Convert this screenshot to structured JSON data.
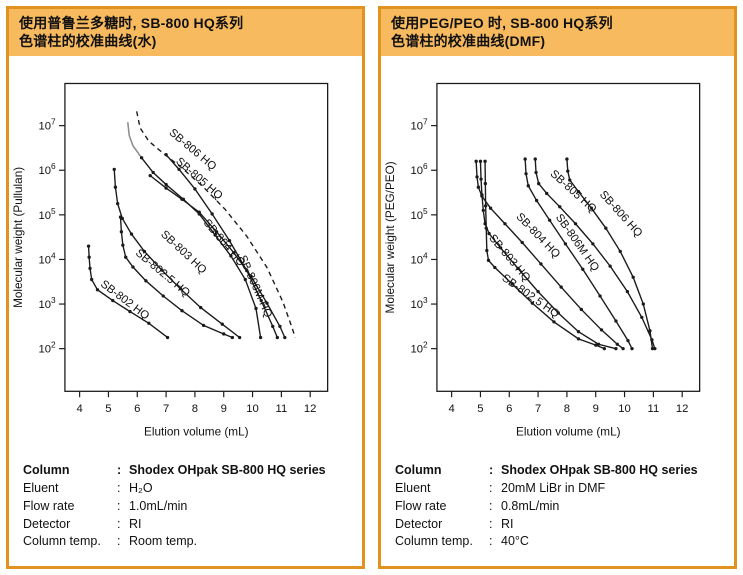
{
  "accent_colors": {
    "panel_border": "#e2921f",
    "header_bg": "#f8ba5e",
    "curve_color": "#1a1a1a",
    "grey_cap_color": "#8f8f8f"
  },
  "panels": [
    {
      "header_lines": [
        "使用普鲁兰多糖时, SB-800 HQ系列",
        "色谱柱的校准曲线(水)"
      ],
      "conditions": [
        {
          "label": "Column",
          "value": "Shodex OHpak SB-800 HQ series",
          "bold": true
        },
        {
          "label": "Eluent",
          "value": "H₂O",
          "bold": false
        },
        {
          "label": "Flow rate",
          "value": "1.0mL/min",
          "bold": false
        },
        {
          "label": "Detector",
          "value": "RI",
          "bold": false
        },
        {
          "label": "Column temp.",
          "value": "Room temp.",
          "bold": false
        }
      ]
    },
    {
      "header_lines": [
        "使用PEG/PEO 时, SB-800 HQ系列",
        "色谱柱的校准曲线(DMF)"
      ],
      "conditions": [
        {
          "label": "Column",
          "value": "Shodex OHpak SB-800 HQ series",
          "bold": true
        },
        {
          "label": "Eluent",
          "value": "20mM LiBr in DMF",
          "bold": false
        },
        {
          "label": "Flow rate",
          "value": "0.8mL/min",
          "bold": false
        },
        {
          "label": "Detector",
          "value": "RI",
          "bold": false
        },
        {
          "label": "Column temp.",
          "value": "40°C",
          "bold": false
        }
      ]
    }
  ],
  "chart_data": [
    {
      "type": "line",
      "title": "Calibration curves of SB-800 HQ series with Pullulan (water)",
      "xlabel": "Elution volume (mL)",
      "ylabel": "Molecular weight (Pullulan)",
      "x_ticks": [
        4,
        5,
        6,
        7,
        8,
        9,
        10,
        11,
        12
      ],
      "y_ticks_exp": [
        2,
        3,
        4,
        5,
        6,
        7
      ],
      "xlim": [
        3.5,
        12.6
      ],
      "ylim_exp": [
        1.05,
        7.95
      ],
      "y_scale": "log",
      "grid": false,
      "legend": "labels-along-curves",
      "series": [
        {
          "name": "SB-802 HQ",
          "dashed": false,
          "markers": true,
          "points": [
            [
              4.31,
              4.3
            ],
            [
              4.33,
              4.05
            ],
            [
              4.36,
              3.8
            ],
            [
              4.42,
              3.55
            ],
            [
              4.62,
              3.32
            ],
            [
              5.15,
              3.08
            ],
            [
              5.75,
              2.83
            ],
            [
              6.4,
              2.57
            ],
            [
              7.05,
              2.25
            ]
          ],
          "label": {
            "x": 4.7,
            "y": 3.42,
            "angle": 37
          }
        },
        {
          "name": "SB-802.5 HQ",
          "dashed": false,
          "markers": true,
          "points": [
            [
              5.42,
              4.95
            ],
            [
              5.45,
              4.62
            ],
            [
              5.5,
              4.32
            ],
            [
              5.6,
              4.05
            ],
            [
              5.85,
              3.83
            ],
            [
              6.3,
              3.52
            ],
            [
              6.9,
              3.18
            ],
            [
              7.55,
              2.85
            ],
            [
              8.3,
              2.52
            ],
            [
              9.0,
              2.33
            ],
            [
              9.3,
              2.25
            ]
          ],
          "label": {
            "x": 5.92,
            "y": 4.12,
            "angle": 40
          }
        },
        {
          "name": "SB-803 HQ",
          "dashed": false,
          "markers": true,
          "points": [
            [
              5.2,
              6.02
            ],
            [
              5.24,
              5.62
            ],
            [
              5.32,
              5.25
            ],
            [
              5.48,
              4.92
            ],
            [
              5.8,
              4.57
            ],
            [
              6.25,
              4.18
            ],
            [
              6.85,
              3.76
            ],
            [
              7.5,
              3.34
            ],
            [
              8.2,
              2.92
            ],
            [
              8.95,
              2.55
            ],
            [
              9.55,
              2.25
            ]
          ],
          "label": {
            "x": 6.8,
            "y": 4.55,
            "angle": 43
          }
        },
        {
          "name": "SB-804 HQ",
          "dashed": false,
          "markers": true,
          "grey_top_above": 6.45,
          "points": [
            [
              5.67,
              7.08
            ],
            [
              5.72,
              6.78
            ],
            [
              5.85,
              6.55
            ],
            [
              6.15,
              6.28
            ],
            [
              6.55,
              5.95
            ],
            [
              7.0,
              5.68
            ],
            [
              7.6,
              5.35
            ],
            [
              8.15,
              5.02
            ],
            [
              8.7,
              4.55
            ],
            [
              9.25,
              4.08
            ],
            [
              9.75,
              3.55
            ],
            [
              10.12,
              2.9
            ],
            [
              10.28,
              2.25
            ]
          ],
          "label": {
            "x": 8.28,
            "y": 4.82,
            "angle": 50
          }
        },
        {
          "name": "SB-805 HQ",
          "dashed": false,
          "markers": true,
          "points": [
            [
              6.45,
              5.88
            ],
            [
              7.0,
              5.6
            ],
            [
              7.55,
              5.35
            ],
            [
              8.15,
              5.06
            ],
            [
              8.75,
              4.62
            ],
            [
              9.35,
              4.15
            ],
            [
              9.95,
              3.62
            ],
            [
              10.5,
              3.02
            ],
            [
              10.95,
              2.5
            ],
            [
              11.12,
              2.25
            ]
          ],
          "label": {
            "x": 7.32,
            "y": 6.18,
            "angle": 41
          }
        },
        {
          "name": "SB-806 HQ",
          "dashed": true,
          "markers": false,
          "points": [
            [
              5.98,
              7.32
            ],
            [
              6.1,
              6.95
            ],
            [
              6.4,
              6.65
            ],
            [
              6.9,
              6.38
            ],
            [
              7.55,
              6.05
            ],
            [
              8.3,
              5.62
            ],
            [
              9.05,
              5.12
            ],
            [
              9.8,
              4.52
            ],
            [
              10.5,
              3.82
            ],
            [
              11.05,
              3.05
            ],
            [
              11.38,
              2.45
            ],
            [
              11.48,
              2.25
            ]
          ],
          "label": {
            "x": 7.08,
            "y": 6.82,
            "angle": 40
          }
        },
        {
          "name": "SB-806M HQ",
          "dashed": false,
          "markers": true,
          "points": [
            [
              7.0,
              6.35
            ],
            [
              7.45,
              6.02
            ],
            [
              8.0,
              5.58
            ],
            [
              8.6,
              5.02
            ],
            [
              9.2,
              4.42
            ],
            [
              9.8,
              3.75
            ],
            [
              10.3,
              3.08
            ],
            [
              10.7,
              2.5
            ],
            [
              10.86,
              2.25
            ]
          ],
          "label": {
            "x": 9.52,
            "y": 4.05,
            "angle": 66
          }
        }
      ]
    },
    {
      "type": "line",
      "title": "Calibration curves of SB-800 HQ series with PEG/PEO (DMF)",
      "xlabel": "Elution volume (mL)",
      "ylabel": "Molecular weight (PEG/PEO)",
      "x_ticks": [
        4,
        5,
        6,
        7,
        8,
        9,
        10,
        11,
        12
      ],
      "y_ticks_exp": [
        2,
        3,
        4,
        5,
        6,
        7
      ],
      "xlim": [
        3.5,
        12.6
      ],
      "ylim_exp": [
        1.05,
        7.95
      ],
      "y_scale": "log",
      "grid": false,
      "legend": "labels-along-curves",
      "series": [
        {
          "name": "SB-802.5 HQ",
          "dashed": false,
          "markers": true,
          "points": [
            [
              5.16,
              6.2
            ],
            [
              5.17,
              5.7
            ],
            [
              5.18,
              5.2
            ],
            [
              5.2,
              4.7
            ],
            [
              5.22,
              4.2
            ],
            [
              5.28,
              3.98
            ],
            [
              5.5,
              3.82
            ],
            [
              6.1,
              3.45
            ],
            [
              6.8,
              3.02
            ],
            [
              7.55,
              2.6
            ],
            [
              8.4,
              2.22
            ],
            [
              9.0,
              2.08
            ],
            [
              9.3,
              2.0
            ]
          ],
          "label": {
            "x": 5.72,
            "y": 3.55,
            "angle": 35
          }
        },
        {
          "name": "SB-803 HQ",
          "dashed": false,
          "markers": true,
          "points": [
            [
              5.0,
              6.2
            ],
            [
              5.02,
              5.8
            ],
            [
              5.05,
              5.45
            ],
            [
              5.1,
              5.1
            ],
            [
              5.16,
              4.8
            ],
            [
              5.3,
              4.58
            ],
            [
              5.7,
              4.26
            ],
            [
              6.3,
              3.8
            ],
            [
              7.0,
              3.28
            ],
            [
              7.7,
              2.8
            ],
            [
              8.4,
              2.38
            ],
            [
              9.1,
              2.1
            ],
            [
              9.7,
              2.0
            ]
          ],
          "label": {
            "x": 5.28,
            "y": 4.48,
            "angle": 50
          }
        },
        {
          "name": "SB-804 HQ",
          "dashed": false,
          "markers": true,
          "points": [
            [
              4.85,
              6.2
            ],
            [
              4.88,
              5.85
            ],
            [
              4.93,
              5.62
            ],
            [
              5.05,
              5.42
            ],
            [
              5.35,
              5.15
            ],
            [
              5.85,
              4.8
            ],
            [
              6.45,
              4.38
            ],
            [
              7.1,
              3.9
            ],
            [
              7.8,
              3.38
            ],
            [
              8.5,
              2.88
            ],
            [
              9.2,
              2.42
            ],
            [
              9.75,
              2.1
            ],
            [
              9.95,
              2.0
            ]
          ],
          "label": {
            "x": 6.22,
            "y": 4.95,
            "angle": 46
          }
        },
        {
          "name": "SB-805 HQ",
          "dashed": false,
          "markers": true,
          "points": [
            [
              6.9,
              6.25
            ],
            [
              6.93,
              5.95
            ],
            [
              7.02,
              5.7
            ],
            [
              7.3,
              5.48
            ],
            [
              7.75,
              5.18
            ],
            [
              8.3,
              4.8
            ],
            [
              8.9,
              4.35
            ],
            [
              9.5,
              3.85
            ],
            [
              10.1,
              3.28
            ],
            [
              10.6,
              2.7
            ],
            [
              10.95,
              2.2
            ],
            [
              11.05,
              2.0
            ]
          ],
          "label": {
            "x": 7.4,
            "y": 5.9,
            "angle": 42
          }
        },
        {
          "name": "SB-806M HQ",
          "dashed": false,
          "markers": true,
          "points": [
            [
              6.55,
              6.25
            ],
            [
              6.58,
              5.92
            ],
            [
              6.66,
              5.65
            ],
            [
              6.95,
              5.32
            ],
            [
              7.4,
              4.88
            ],
            [
              7.95,
              4.35
            ],
            [
              8.55,
              3.78
            ],
            [
              9.15,
              3.18
            ],
            [
              9.7,
              2.62
            ],
            [
              10.12,
              2.18
            ],
            [
              10.26,
              2.0
            ]
          ],
          "label": {
            "x": 7.6,
            "y": 4.95,
            "angle": 55
          }
        },
        {
          "name": "SB-806 HQ",
          "dashed": false,
          "markers": true,
          "points": [
            [
              8.0,
              6.25
            ],
            [
              8.03,
              5.98
            ],
            [
              8.1,
              5.78
            ],
            [
              8.4,
              5.52
            ],
            [
              8.85,
              5.15
            ],
            [
              9.35,
              4.7
            ],
            [
              9.85,
              4.18
            ],
            [
              10.3,
              3.6
            ],
            [
              10.65,
              3.0
            ],
            [
              10.88,
              2.4
            ],
            [
              10.97,
              2.0
            ]
          ],
          "label": {
            "x": 9.12,
            "y": 5.45,
            "angle": 48
          }
        }
      ]
    }
  ]
}
